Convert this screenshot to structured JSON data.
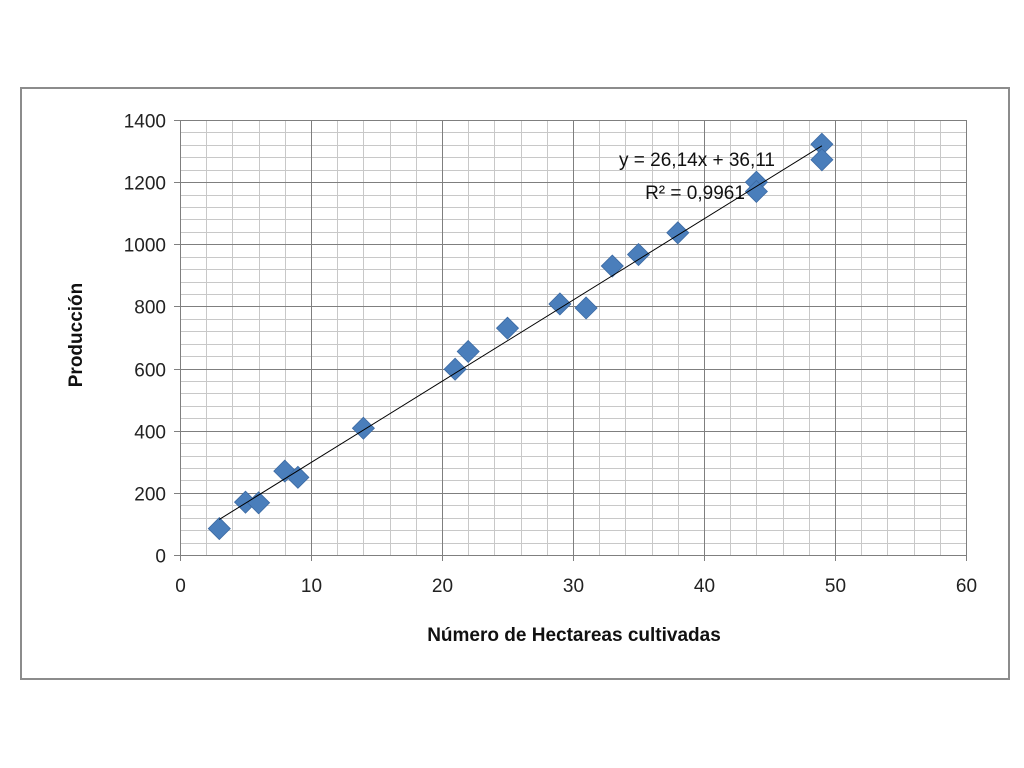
{
  "chart_data": {
    "type": "scatter",
    "title": "",
    "xlabel": "Número de Hectareas cultivadas",
    "ylabel": "Producción",
    "xlim": [
      0,
      60
    ],
    "ylim": [
      0,
      1400
    ],
    "x_ticks": [
      "0",
      "10",
      "20",
      "30",
      "40",
      "50",
      "60"
    ],
    "y_ticks": [
      "0",
      "200",
      "400",
      "600",
      "800",
      "1000",
      "1200",
      "1400"
    ],
    "x_major_step": 10,
    "x_minor_step": 2,
    "y_major_step": 200,
    "y_minor_step": 40,
    "grid": true,
    "legend": "none",
    "marker": "diamond",
    "marker_color": "#4a7ebb",
    "trendline_color": "#000000",
    "points": [
      {
        "x": 3,
        "y": 85
      },
      {
        "x": 5,
        "y": 170
      },
      {
        "x": 6,
        "y": 168
      },
      {
        "x": 8,
        "y": 270
      },
      {
        "x": 9,
        "y": 250
      },
      {
        "x": 14,
        "y": 408
      },
      {
        "x": 21,
        "y": 598
      },
      {
        "x": 22,
        "y": 655
      },
      {
        "x": 25,
        "y": 730
      },
      {
        "x": 29,
        "y": 808
      },
      {
        "x": 31,
        "y": 795
      },
      {
        "x": 33,
        "y": 930
      },
      {
        "x": 35,
        "y": 967
      },
      {
        "x": 38,
        "y": 1037
      },
      {
        "x": 44,
        "y": 1200
      },
      {
        "x": 44,
        "y": 1170
      },
      {
        "x": 49,
        "y": 1322
      },
      {
        "x": 49,
        "y": 1272
      }
    ],
    "trendline": {
      "slope": 26.14,
      "intercept": 36.11,
      "x_range": [
        3,
        49
      ],
      "equation_label": "y = 26,14x + 36,11",
      "r2_label": "R² = 0,9961"
    }
  }
}
